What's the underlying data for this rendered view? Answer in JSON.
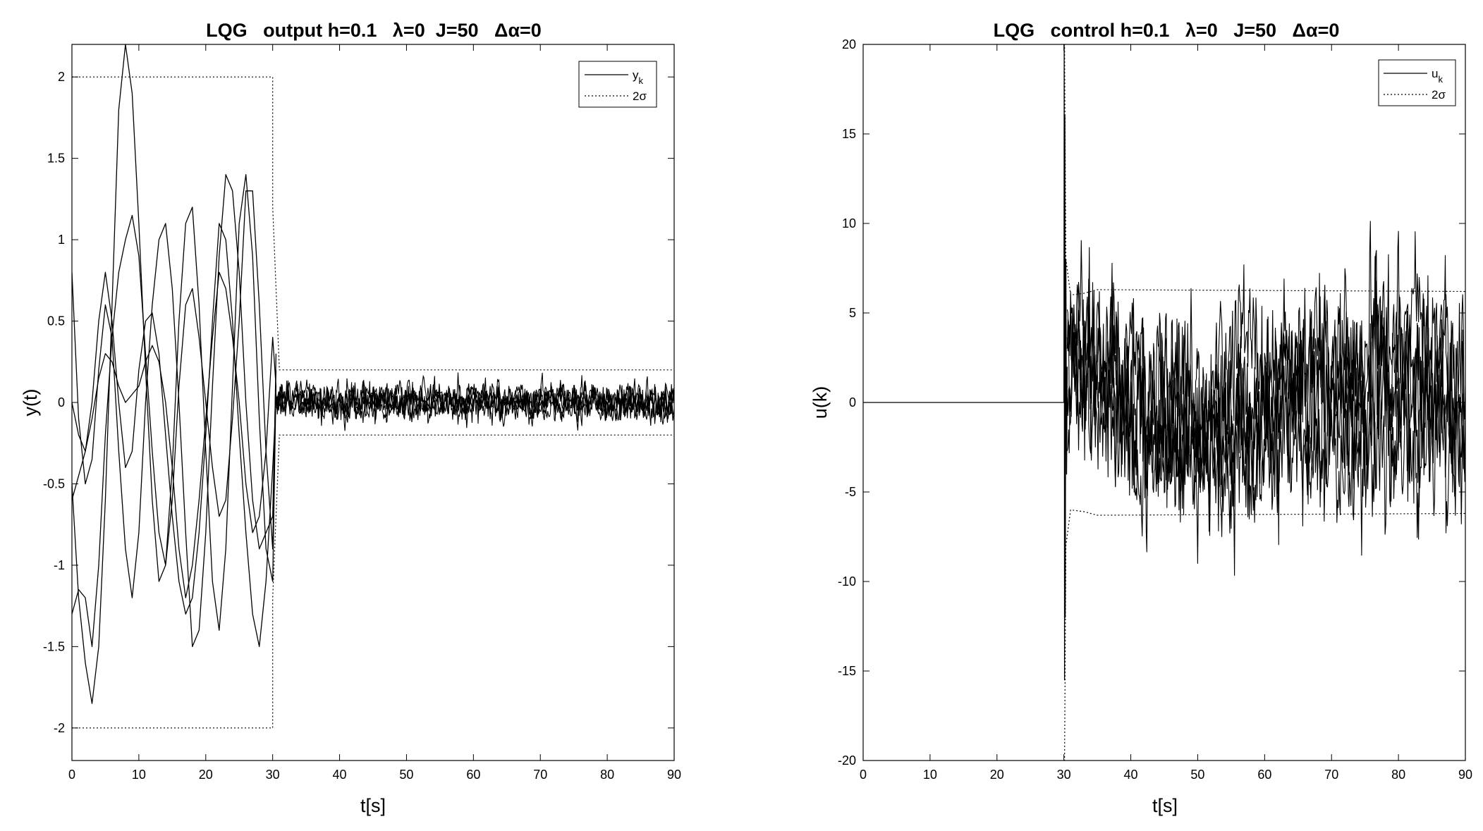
{
  "chart_data": [
    {
      "id": "left",
      "type": "line",
      "title": "LQG   output h=0.1   λ=0  J=50   Δα=0",
      "xlabel": "t[s]",
      "ylabel": "y(t)",
      "xlim": [
        0,
        90
      ],
      "ylim": [
        -2.2,
        2.2
      ],
      "xticks": [
        0,
        10,
        20,
        30,
        40,
        50,
        60,
        70,
        80,
        90
      ],
      "yticks": [
        -2,
        -1.5,
        -1,
        -0.5,
        0,
        0.5,
        1,
        1.5,
        2
      ],
      "grid": false,
      "legend_position": "top-right",
      "legend": [
        {
          "label": "y",
          "sub": "k",
          "style": "solid"
        },
        {
          "label": "2σ",
          "sub": "",
          "style": "dotted"
        }
      ],
      "series": [
        {
          "name": "y_k run 1",
          "style": "solid",
          "x": [
            0,
            1,
            2,
            3,
            4,
            5,
            6,
            7,
            8,
            9,
            10,
            11,
            12,
            13,
            14,
            15,
            16,
            17,
            18,
            19,
            20,
            21,
            22,
            23,
            24,
            25,
            26,
            27,
            28,
            29,
            30,
            30.5
          ],
          "y": [
            -0.5,
            -1.2,
            -1.6,
            -1.85,
            -1.5,
            -0.6,
            0.6,
            1.8,
            2.2,
            1.9,
            1.1,
            0.2,
            -0.6,
            -1.1,
            -1.0,
            -0.4,
            0.5,
            1.1,
            1.2,
            0.6,
            -0.3,
            -1.1,
            -1.4,
            -0.9,
            0.1,
            1.1,
            1.4,
            0.9,
            -0.1,
            -0.9,
            -1.1,
            0.1
          ]
        },
        {
          "name": "y_k run 2",
          "style": "solid",
          "x": [
            0,
            1,
            2,
            3,
            4,
            5,
            6,
            7,
            8,
            9,
            10,
            11,
            12,
            13,
            14,
            15,
            16,
            17,
            18,
            19,
            20,
            21,
            22,
            23,
            24,
            25,
            26,
            27,
            28,
            29,
            30,
            30.5
          ],
          "y": [
            0.8,
            -0.1,
            -0.5,
            -0.35,
            0.2,
            0.6,
            0.4,
            -0.3,
            -0.9,
            -1.2,
            -0.8,
            0.0,
            0.6,
            1.0,
            1.1,
            0.7,
            0.0,
            -0.8,
            -1.5,
            -1.4,
            -0.8,
            0.1,
            0.9,
            1.4,
            1.3,
            0.8,
            0.0,
            -0.6,
            -0.9,
            -0.8,
            -0.7,
            0.2
          ]
        },
        {
          "name": "y_k run 3",
          "style": "solid",
          "x": [
            0,
            1,
            2,
            3,
            4,
            5,
            6,
            7,
            8,
            9,
            10,
            11,
            12,
            13,
            14,
            15,
            16,
            17,
            18,
            19,
            20,
            21,
            22,
            23,
            24,
            25,
            26,
            27,
            28,
            29,
            30,
            30.5
          ],
          "y": [
            -1.3,
            -1.15,
            -1.2,
            -1.5,
            -1.0,
            -0.2,
            0.4,
            0.8,
            1.0,
            1.15,
            0.9,
            0.3,
            -0.3,
            -0.8,
            -1.0,
            -0.6,
            0.1,
            0.6,
            0.7,
            0.4,
            0.0,
            -0.4,
            -0.7,
            -0.6,
            -0.1,
            0.5,
            1.3,
            1.3,
            0.6,
            -0.3,
            -0.9,
            0.3
          ]
        },
        {
          "name": "y_k run 4",
          "style": "solid",
          "x": [
            0,
            1,
            2,
            3,
            4,
            5,
            6,
            7,
            8,
            9,
            10,
            11,
            12,
            13,
            14,
            15,
            16,
            17,
            18,
            19,
            20,
            21,
            22,
            23,
            24,
            25,
            26,
            27,
            28,
            29,
            30,
            30.5
          ],
          "y": [
            0.0,
            -0.2,
            -0.3,
            0.0,
            0.5,
            0.8,
            0.5,
            0.0,
            -0.4,
            -0.3,
            0.2,
            0.5,
            0.55,
            0.3,
            -0.2,
            -0.7,
            -1.1,
            -1.3,
            -1.2,
            -0.8,
            -0.2,
            0.5,
            1.1,
            1.0,
            0.5,
            -0.2,
            -0.8,
            -1.3,
            -1.5,
            -1.1,
            -0.4,
            0.0
          ]
        },
        {
          "name": "y_k run 5",
          "style": "solid",
          "x": [
            0,
            1,
            2,
            3,
            4,
            5,
            6,
            7,
            8,
            9,
            10,
            11,
            12,
            13,
            14,
            15,
            16,
            17,
            18,
            19,
            20,
            21,
            22,
            23,
            24,
            25,
            26,
            27,
            28,
            29,
            30,
            30.5
          ],
          "y": [
            -0.6,
            -0.45,
            -0.3,
            -0.1,
            0.15,
            0.3,
            0.25,
            0.1,
            0.0,
            0.05,
            0.1,
            0.25,
            0.35,
            0.25,
            0.0,
            -0.4,
            -0.9,
            -1.2,
            -1.0,
            -0.6,
            -0.1,
            0.4,
            0.8,
            0.7,
            0.4,
            0.0,
            -0.5,
            -0.8,
            -0.7,
            -0.3,
            0.4,
            0.1
          ]
        }
      ],
      "noise_series": {
        "x_range": [
          30.5,
          90
        ],
        "count": 5,
        "std": 0.085,
        "style": "solid"
      },
      "bounds": [
        {
          "name": "2σ upper",
          "style": "dotted",
          "x": [
            0,
            30,
            30,
            31,
            90
          ],
          "y": [
            2.0,
            2.0,
            1.2,
            0.2,
            0.2
          ]
        },
        {
          "name": "2σ lower",
          "style": "dotted",
          "x": [
            0,
            30,
            30,
            31,
            90
          ],
          "y": [
            -2.0,
            -2.0,
            -1.2,
            -0.2,
            -0.2
          ]
        }
      ]
    },
    {
      "id": "right",
      "type": "line",
      "title": "LQG   control h=0.1   λ=0   J=50   Δα=0",
      "xlabel": "t[s]",
      "ylabel": "u(k)",
      "xlim": [
        0,
        90
      ],
      "ylim": [
        -20,
        20
      ],
      "xticks": [
        0,
        10,
        20,
        30,
        40,
        50,
        60,
        70,
        80,
        90
      ],
      "yticks": [
        -20,
        -15,
        -10,
        -5,
        0,
        5,
        10,
        15,
        20
      ],
      "grid": false,
      "legend_position": "top-right",
      "legend": [
        {
          "label": "u",
          "sub": "k",
          "style": "solid"
        },
        {
          "label": "2σ",
          "sub": "",
          "style": "dotted"
        }
      ],
      "series": [
        {
          "name": "u_k zero segment",
          "style": "solid",
          "x": [
            0,
            30
          ],
          "y": [
            0,
            0
          ]
        },
        {
          "name": "u_k spike",
          "style": "solid",
          "x": [
            30,
            30.05,
            30.1,
            30.15,
            30.2,
            30.3,
            30.4,
            30.5
          ],
          "y": [
            0,
            20,
            -15.5,
            16,
            -12,
            8,
            -4,
            2
          ]
        }
      ],
      "noise_series": {
        "x_range": [
          30.5,
          90
        ],
        "count": 5,
        "std": 2.6,
        "style": "solid"
      },
      "bounds": [
        {
          "name": "2σ upper",
          "style": "dotted",
          "x": [
            30,
            30.1,
            30.3,
            31,
            33,
            35,
            90
          ],
          "y": [
            20,
            20,
            8,
            6.0,
            6.1,
            6.3,
            6.2
          ]
        },
        {
          "name": "2σ lower",
          "style": "dotted",
          "x": [
            30,
            30.1,
            30.3,
            31,
            33,
            35,
            90
          ],
          "y": [
            -20,
            -20,
            -8,
            -6.0,
            -6.1,
            -6.3,
            -6.2
          ]
        }
      ]
    }
  ]
}
